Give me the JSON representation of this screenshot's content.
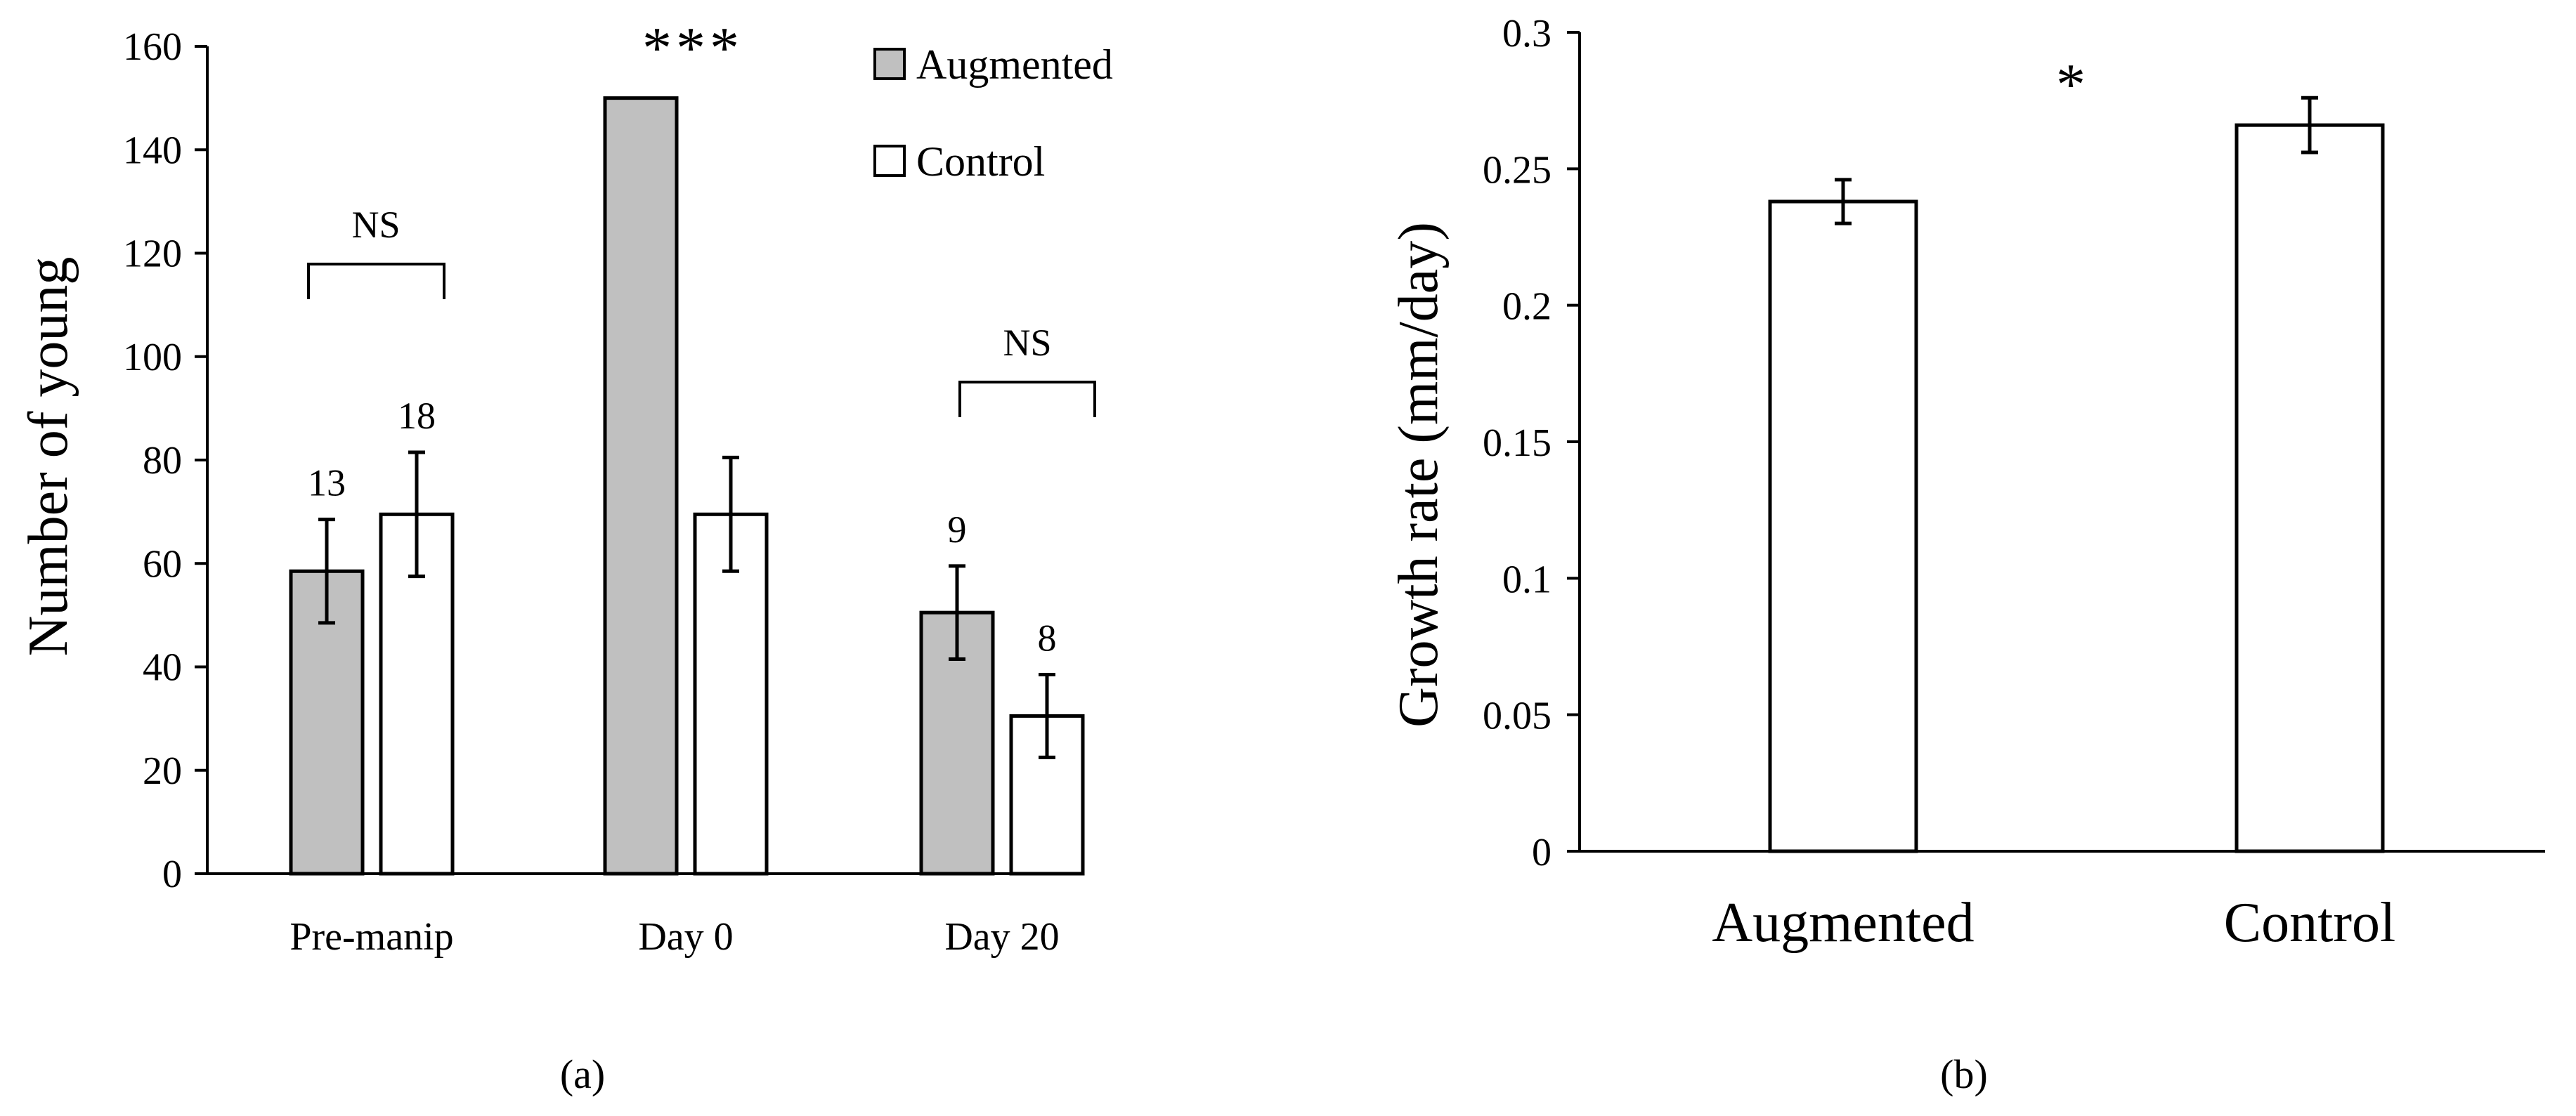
{
  "chart_data": [
    {
      "panel": "a",
      "type": "bar",
      "caption": "(a)",
      "ylabel": "Number of young",
      "xlabel": "",
      "ylim": [
        0,
        160
      ],
      "yticks": [
        "0",
        "20",
        "40",
        "60",
        "80",
        "100",
        "120",
        "140",
        "160"
      ],
      "categories": [
        "Pre-manip",
        "Day 0",
        "Day 20"
      ],
      "series": [
        {
          "name": "Augmented",
          "color": "#c0c0c0",
          "values": [
            58.5,
            150,
            50.5
          ],
          "errors": [
            10,
            0,
            9
          ],
          "n_labels": [
            "13",
            "",
            "9"
          ]
        },
        {
          "name": "Control",
          "color": "#ffffff",
          "values": [
            69.5,
            69.5,
            30.5
          ],
          "errors": [
            12,
            11,
            8
          ],
          "n_labels": [
            "18",
            "",
            "8"
          ]
        }
      ],
      "significance": [
        "NS",
        "***",
        "NS"
      ],
      "legend": {
        "position": "top-right",
        "entries": [
          "Augmented",
          "Control"
        ]
      },
      "grid": false
    },
    {
      "panel": "b",
      "type": "bar",
      "caption": "(b)",
      "ylabel": "Growth rate (mm/day)",
      "xlabel": "",
      "ylim": [
        0,
        0.3
      ],
      "yticks": [
        "0",
        "0.05",
        "0.1",
        "0.15",
        "0.2",
        "0.25",
        "0.3"
      ],
      "categories": [
        "Augmented",
        "Control"
      ],
      "values": [
        0.238,
        0.266
      ],
      "errors": [
        0.008,
        0.01
      ],
      "color": "#ffffff",
      "significance": "*",
      "grid": false
    }
  ]
}
